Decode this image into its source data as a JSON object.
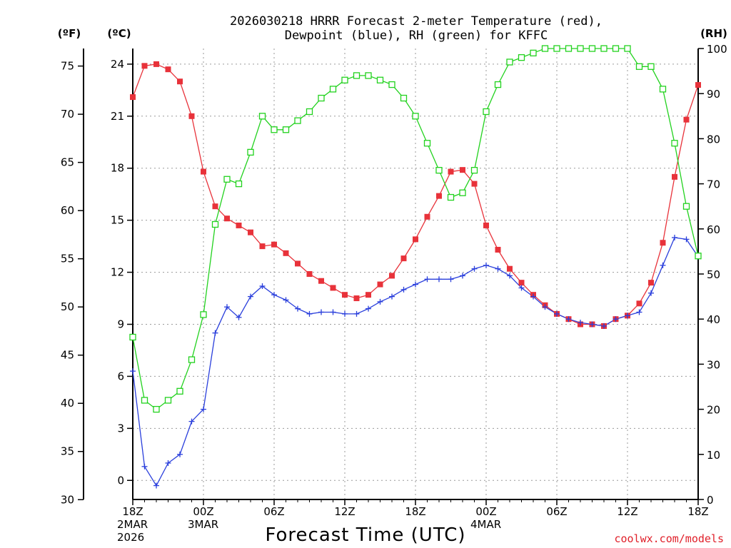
{
  "chart_data": {
    "type": "line",
    "title_line1": "2026030218 HRRR Forecast 2-meter Temperature (red),",
    "title_line2": "Dewpoint (blue), RH (green) for KFFC",
    "xlabel": "Forecast Time (UTC)",
    "credit": "coolwx.com/models",
    "units": {
      "fahrenheit": "(ºF)",
      "celsius": "(ºC)",
      "rh": "(RH)"
    },
    "x_range": [
      0,
      48
    ],
    "celsius_range": [
      -1.1,
      24.9
    ],
    "rh_range": [
      0,
      100
    ],
    "fahrenheit_ticks": [
      30,
      35,
      40,
      45,
      50,
      55,
      60,
      65,
      70,
      75
    ],
    "celsius_ticks": [
      0,
      3,
      6,
      9,
      12,
      15,
      18,
      21,
      24
    ],
    "rh_ticks": [
      0,
      10,
      20,
      30,
      40,
      50,
      60,
      70,
      80,
      90,
      100
    ],
    "x_ticks": [
      {
        "hour": 0,
        "lines": [
          "18Z",
          "2MAR",
          "2026"
        ]
      },
      {
        "hour": 6,
        "lines": [
          "00Z",
          "3MAR"
        ]
      },
      {
        "hour": 12,
        "lines": [
          "06Z"
        ]
      },
      {
        "hour": 18,
        "lines": [
          "12Z"
        ]
      },
      {
        "hour": 24,
        "lines": [
          "18Z"
        ]
      },
      {
        "hour": 30,
        "lines": [
          "00Z",
          "4MAR"
        ]
      },
      {
        "hour": 36,
        "lines": [
          "06Z"
        ]
      },
      {
        "hour": 42,
        "lines": [
          "12Z"
        ]
      },
      {
        "hour": 48,
        "lines": [
          "18Z"
        ]
      }
    ],
    "forecast_hours": [
      0,
      1,
      2,
      3,
      4,
      5,
      6,
      7,
      8,
      9,
      10,
      11,
      12,
      13,
      14,
      15,
      16,
      17,
      18,
      19,
      20,
      21,
      22,
      23,
      24,
      25,
      26,
      27,
      28,
      29,
      30,
      31,
      32,
      33,
      34,
      35,
      36,
      37,
      38,
      39,
      40,
      41,
      42,
      43,
      44,
      45,
      46,
      47,
      48
    ],
    "series": [
      {
        "name": "Temperature",
        "unit": "C",
        "color": "#e8323a",
        "marker": "filled-square",
        "values": [
          22.1,
          23.9,
          24.0,
          23.7,
          23.0,
          21.0,
          17.8,
          15.8,
          15.1,
          14.7,
          14.3,
          13.5,
          13.6,
          13.1,
          12.5,
          11.9,
          11.5,
          11.1,
          10.7,
          10.5,
          10.7,
          11.3,
          11.8,
          12.8,
          13.9,
          15.2,
          16.4,
          17.8,
          17.9,
          17.1,
          14.7,
          13.3,
          12.2,
          11.4,
          10.7,
          10.1,
          9.6,
          9.3,
          9.0,
          9.0,
          8.9,
          9.3,
          9.5,
          10.2,
          11.4,
          13.7,
          17.5,
          20.8,
          22.8
        ]
      },
      {
        "name": "Dewpoint",
        "unit": "C",
        "color": "#2a3fdc",
        "marker": "plus",
        "values": [
          6.3,
          0.8,
          -0.3,
          1.0,
          1.5,
          3.4,
          4.1,
          8.5,
          10.0,
          9.4,
          10.6,
          11.2,
          10.7,
          10.4,
          9.9,
          9.6,
          9.7,
          9.7,
          9.6,
          9.6,
          9.9,
          10.3,
          10.6,
          11.0,
          11.3,
          11.6,
          11.6,
          11.6,
          11.8,
          12.2,
          12.4,
          12.2,
          11.8,
          11.1,
          10.6,
          10.0,
          9.6,
          9.3,
          9.1,
          9.0,
          8.9,
          9.3,
          9.5,
          9.7,
          10.8,
          12.4,
          14.0,
          13.9,
          12.9
        ]
      },
      {
        "name": "RH",
        "unit": "%",
        "color": "#22d21e",
        "marker": "open-square",
        "values": [
          36,
          22,
          20,
          22,
          24,
          31,
          41,
          61,
          71,
          70,
          77,
          85,
          82,
          82,
          84,
          86,
          89,
          91,
          93,
          94,
          94,
          93,
          92,
          89,
          85,
          79,
          73,
          67,
          68,
          73,
          86,
          92,
          97,
          98,
          99,
          100,
          100,
          100,
          100,
          100,
          100,
          100,
          100,
          96,
          96,
          91,
          79,
          65,
          54
        ]
      }
    ]
  }
}
